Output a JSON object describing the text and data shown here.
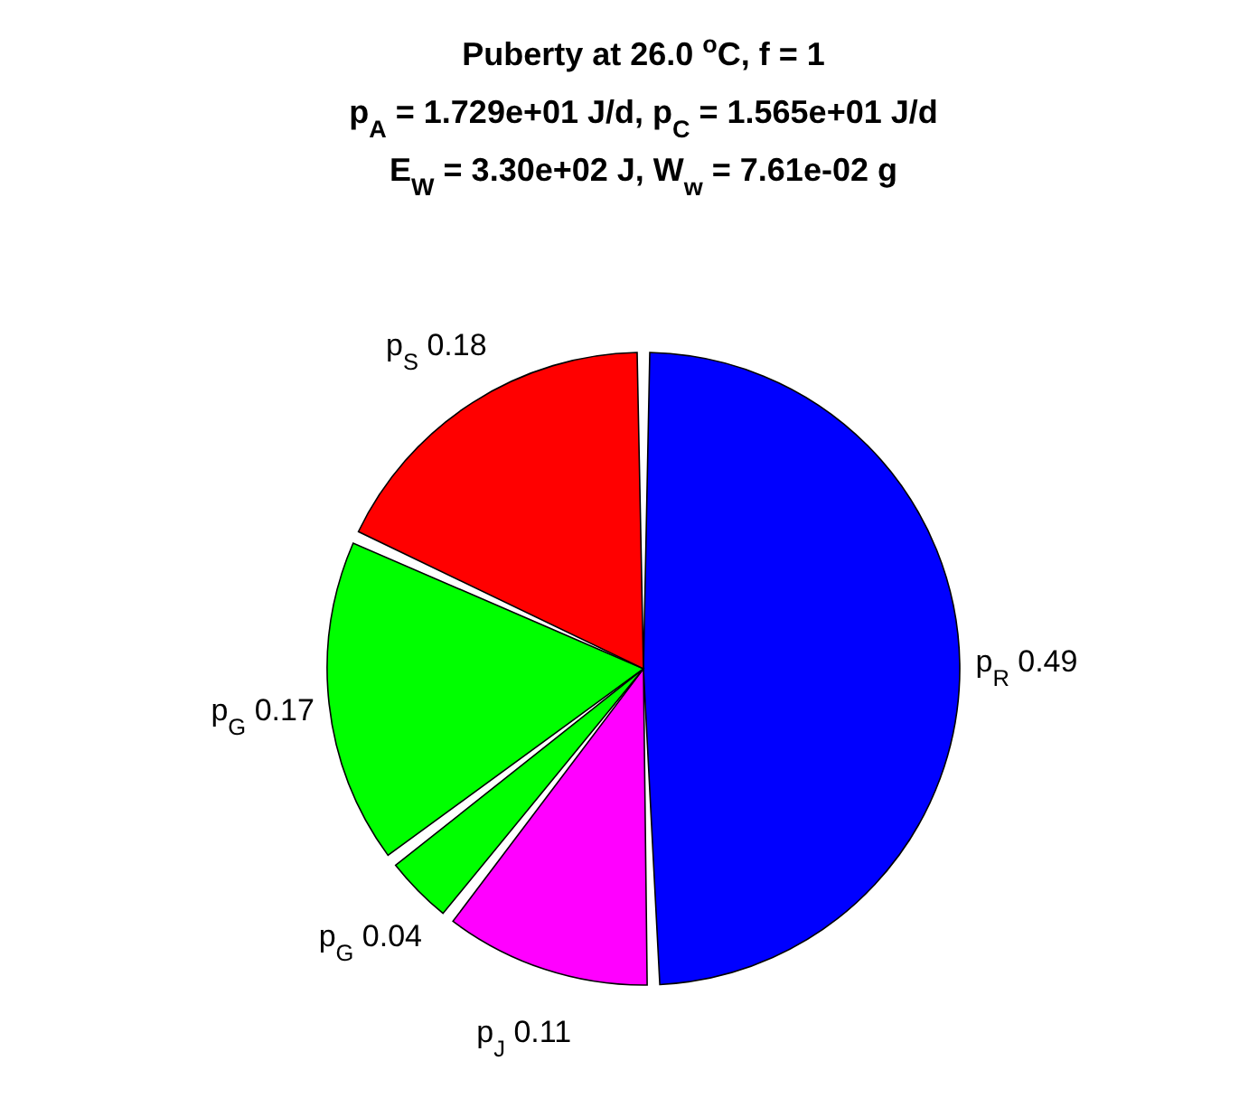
{
  "chart_data": {
    "type": "pie",
    "title": "Puberty at 26.0 $^{o}$C, f = 1\np$_{A}$ = 1.729e+01 J/d,  p$_{C}$ = 1.565e+01 J/d\nE$_{W}$ = 3.30e+02 J, W$_{w}$ = 7.61e-02 g",
    "categories": [
      "p$_{R}$",
      "p$_{J}$",
      "p$_{G}$",
      "p$_{G}$",
      "p$_{S}$"
    ],
    "values": [
      0.49,
      0.11,
      0.04,
      0.17,
      0.18
    ],
    "colors": [
      "#0000ff",
      "#ff00ff",
      "#00ff00",
      "#00ff00",
      "#ff0000"
    ],
    "data_labels": true
  }
}
